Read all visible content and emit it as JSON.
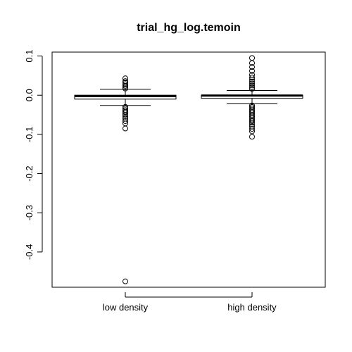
{
  "chart_data": {
    "type": "boxplot",
    "title": "trial_hg_log.temoin",
    "xlabel": "",
    "ylabel": "",
    "ylim": [
      -0.49,
      0.11
    ],
    "yticks": [
      0.1,
      0.0,
      -0.1,
      -0.2,
      -0.3,
      -0.4
    ],
    "ytick_labels": [
      "0.1",
      "0.0",
      "-0.1",
      "-0.2",
      "-0.3",
      "-0.4"
    ],
    "categories": [
      "low density",
      "high density"
    ],
    "boxes": [
      {
        "name": "low density",
        "whisker_low": -0.026,
        "q1": -0.01,
        "median": -0.002,
        "q3": 0.0,
        "whisker_high": 0.015,
        "outliers": [
          0.043,
          0.036,
          0.032,
          0.028,
          0.024,
          0.02,
          0.017,
          -0.03,
          -0.034,
          -0.038,
          -0.042,
          -0.046,
          -0.05,
          -0.055,
          -0.06,
          -0.066,
          -0.072,
          -0.085,
          -0.475
        ]
      },
      {
        "name": "high density",
        "whisker_low": -0.022,
        "q1": -0.008,
        "median": -0.001,
        "q3": 0.0,
        "whisker_high": 0.012,
        "outliers": [
          0.095,
          0.082,
          0.072,
          0.062,
          0.052,
          0.045,
          0.04,
          0.035,
          0.03,
          0.025,
          0.02,
          0.016,
          -0.026,
          -0.03,
          -0.034,
          -0.038,
          -0.042,
          -0.046,
          -0.05,
          -0.054,
          -0.058,
          -0.062,
          -0.066,
          -0.07,
          -0.075,
          -0.08,
          -0.086,
          -0.092,
          -0.106
        ]
      }
    ]
  }
}
